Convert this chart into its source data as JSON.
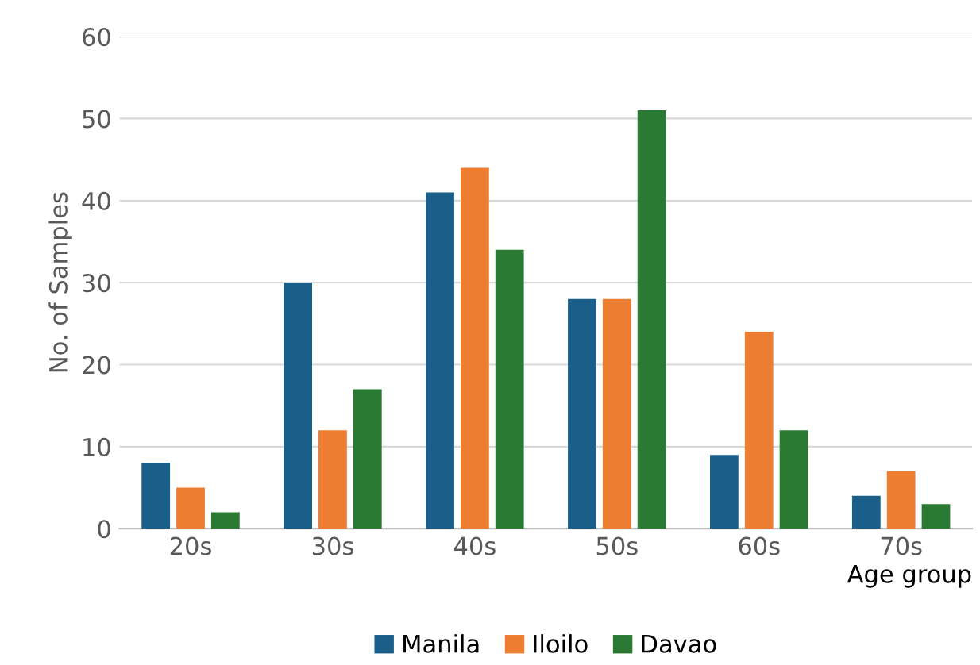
{
  "chart_data": {
    "type": "bar",
    "xlabel": "Age group",
    "ylabel": "No. of Samples",
    "categories": [
      "20s",
      "30s",
      "40s",
      "50s",
      "60s",
      "70s"
    ],
    "series": [
      {
        "name": "Manila",
        "color": "#1a5f8a",
        "values": [
          8,
          30,
          41,
          28,
          9,
          4
        ]
      },
      {
        "name": "Iloilo",
        "color": "#ed7d31",
        "values": [
          5,
          12,
          44,
          28,
          24,
          7
        ]
      },
      {
        "name": "Davao",
        "color": "#2a7a33",
        "values": [
          2,
          17,
          34,
          51,
          12,
          3
        ]
      }
    ],
    "ylim": [
      0,
      60
    ],
    "yticks": [
      0,
      10,
      20,
      30,
      40,
      50,
      60
    ],
    "grid": "y",
    "legend": "bottom"
  }
}
